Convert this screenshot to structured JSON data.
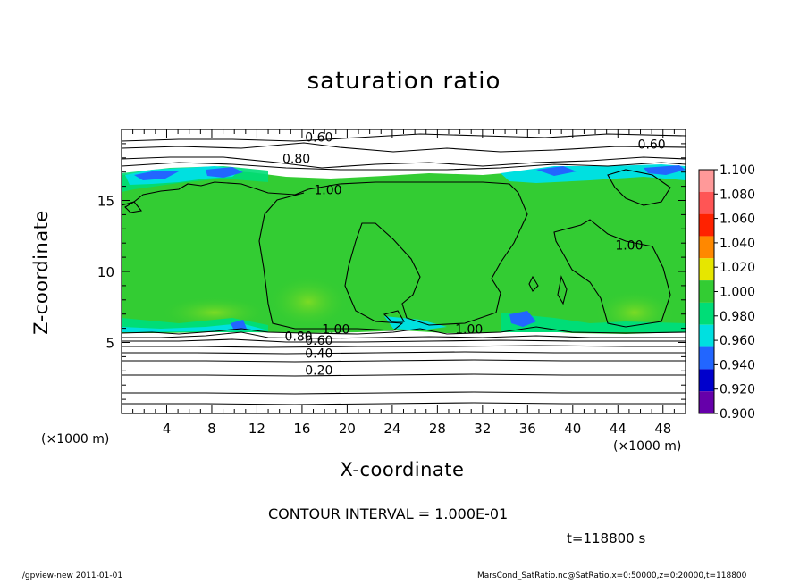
{
  "chart_data": {
    "type": "heatmap",
    "title": "saturation ratio",
    "xlabel": "X-coordinate",
    "ylabel": "Z-coordinate",
    "x_unit_label": "(×1000 m)",
    "z_unit_label": "(×1000 m)",
    "xlim": [
      0,
      50
    ],
    "ylim": [
      0,
      20
    ],
    "x_ticks": [
      4,
      8,
      12,
      16,
      20,
      24,
      28,
      32,
      36,
      40,
      44,
      48
    ],
    "y_ticks": [
      5,
      10,
      15
    ],
    "colorbar": {
      "levels": [
        1.1,
        1.08,
        1.06,
        1.04,
        1.02,
        1.0,
        0.98,
        0.96,
        0.94,
        0.92,
        0.9
      ],
      "labels": [
        "1.100",
        "1.080",
        "1.060",
        "1.040",
        "1.020",
        "1.000",
        "0.980",
        "0.960",
        "0.940",
        "0.920",
        "0.900"
      ],
      "colors": [
        "#ff9999",
        "#ff5555",
        "#ff2200",
        "#ff8800",
        "#e6e600",
        "#33cc33",
        "#00dd77",
        "#00e0e0",
        "#2266ff",
        "#0000cc",
        "#6600aa"
      ]
    },
    "contour_labels": [
      {
        "text": "0.60",
        "x": 17.5,
        "z": 19.2
      },
      {
        "text": "0.60",
        "x": 47.0,
        "z": 18.7
      },
      {
        "text": "0.80",
        "x": 15.5,
        "z": 17.7
      },
      {
        "text": "1.00",
        "x": 18.3,
        "z": 15.5
      },
      {
        "text": "1.00",
        "x": 45.0,
        "z": 11.6
      },
      {
        "text": "1.00",
        "x": 19.0,
        "z": 5.7
      },
      {
        "text": "1.00",
        "x": 30.8,
        "z": 5.7
      },
      {
        "text": "0.80",
        "x": 15.7,
        "z": 5.2
      },
      {
        "text": "0.60",
        "x": 17.5,
        "z": 4.9
      },
      {
        "text": "0.40",
        "x": 17.5,
        "z": 4.0
      },
      {
        "text": "0.20",
        "x": 17.5,
        "z": 2.8
      }
    ],
    "contour_interval_text": "CONTOUR INTERVAL = 1.000E-01",
    "time_text": "t=118800  s"
  },
  "footer": {
    "left": "./gpview-new  2011-01-01",
    "right": "MarsCond_SatRatio.nc@SatRatio,x=0:50000,z=0:20000,t=118800"
  }
}
